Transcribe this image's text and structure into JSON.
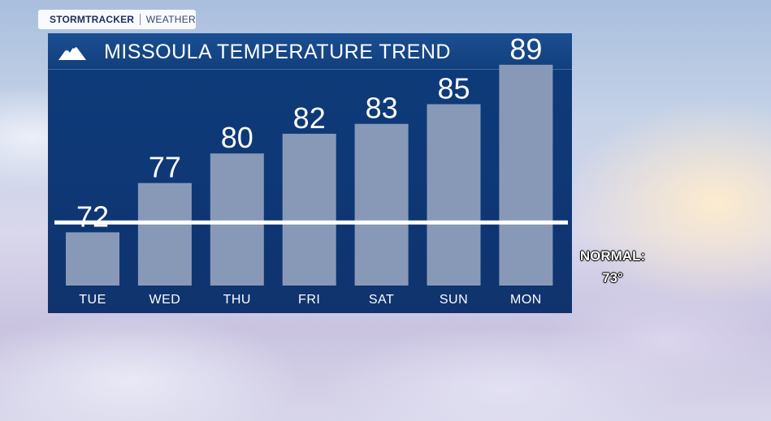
{
  "brand": {
    "name": "STORMTRACKER",
    "section": "WEATHER"
  },
  "header": {
    "title": "MISSOULA TEMPERATURE TREND",
    "icon": "mountain-icon"
  },
  "normal": {
    "label": "NORMAL:",
    "value_text": "73°",
    "value": 73
  },
  "colors": {
    "panel": "#0d3b7a",
    "bar": "#8899b8",
    "normal_line": "#ffffff"
  },
  "chart_data": {
    "type": "bar",
    "title": "MISSOULA TEMPERATURE TREND",
    "categories": [
      "TUE",
      "WED",
      "THU",
      "FRI",
      "SAT",
      "SUN",
      "MON"
    ],
    "values": [
      72,
      77,
      80,
      82,
      83,
      85,
      89
    ],
    "reference_line": {
      "label": "NORMAL:",
      "value": 73
    },
    "grid": false,
    "legend": "none"
  }
}
